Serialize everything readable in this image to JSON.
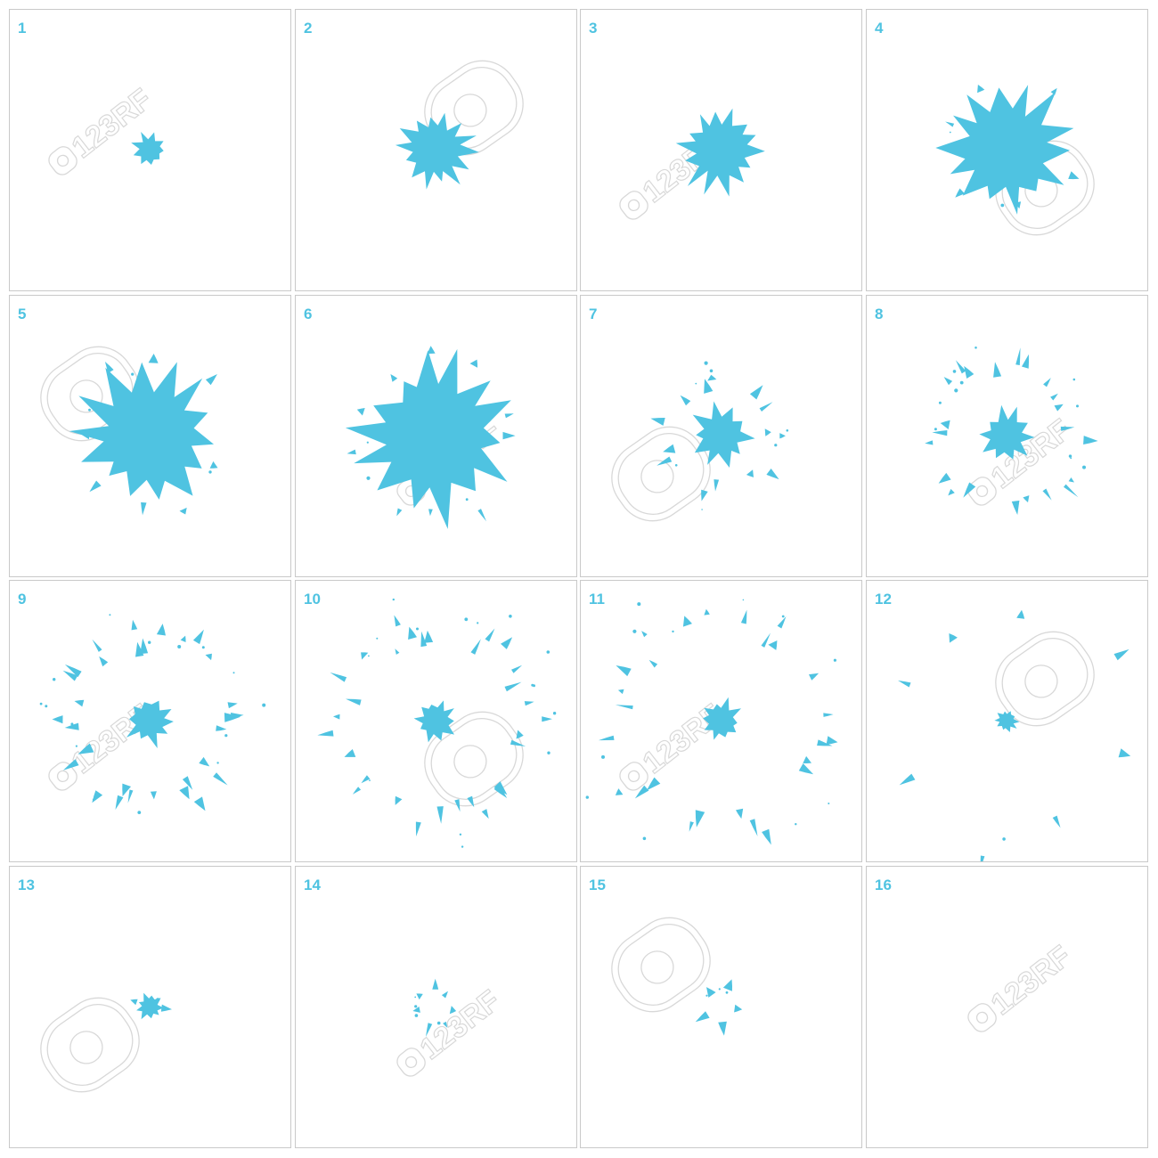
{
  "splash_color": "#4fc3e1",
  "frames": [
    {
      "label": "1",
      "scale": 0.09,
      "core": true,
      "ring": 0,
      "fragments": 0,
      "watermark": "logo"
    },
    {
      "label": "2",
      "scale": 0.2,
      "core": true,
      "ring": 0,
      "fragments": 0,
      "watermark": "ring"
    },
    {
      "label": "3",
      "scale": 0.22,
      "core": true,
      "ring": 0,
      "fragments": 0,
      "watermark": "logo"
    },
    {
      "label": "4",
      "scale": 0.34,
      "core": true,
      "ring": 0,
      "fragments": 6,
      "watermark": "ring"
    },
    {
      "label": "5",
      "scale": 0.38,
      "core": true,
      "ring": 0,
      "fragments": 8,
      "watermark": "ring"
    },
    {
      "label": "6",
      "scale": 0.42,
      "core": true,
      "ring": 0,
      "fragments": 10,
      "watermark": "logo"
    },
    {
      "label": "7",
      "scale": 0.16,
      "core": true,
      "ring": 0.4,
      "fragments": 14,
      "watermark": "ring"
    },
    {
      "label": "8",
      "scale": 0.14,
      "core": true,
      "ring": 0.5,
      "fragments": 22,
      "watermark": "logo"
    },
    {
      "label": "9",
      "scale": 0.13,
      "core": true,
      "ring": 0.6,
      "fragments": 30,
      "watermark": "logo"
    },
    {
      "label": "10",
      "scale": 0.11,
      "core": true,
      "ring": 0.7,
      "fragments": 30,
      "watermark": "ring"
    },
    {
      "label": "11",
      "scale": 0.11,
      "core": true,
      "ring": 0.8,
      "fragments": 26,
      "watermark": "logo"
    },
    {
      "label": "12",
      "scale": 0.06,
      "core": true,
      "ring": 0.9,
      "fragments": 8,
      "watermark": "ring"
    },
    {
      "label": "13",
      "scale": 0.07,
      "core": true,
      "ring": 0,
      "fragments": 2,
      "watermark": "ring"
    },
    {
      "label": "14",
      "scale": 0.04,
      "core": false,
      "ring": 0.12,
      "fragments": 7,
      "watermark": "logo"
    },
    {
      "label": "15",
      "scale": 0.02,
      "core": false,
      "ring": 0.12,
      "fragments": 5,
      "watermark": "ring"
    },
    {
      "label": "16",
      "scale": 0,
      "core": false,
      "ring": 0,
      "fragments": 0,
      "watermark": "logo"
    }
  ],
  "watermark_text": "123RF"
}
